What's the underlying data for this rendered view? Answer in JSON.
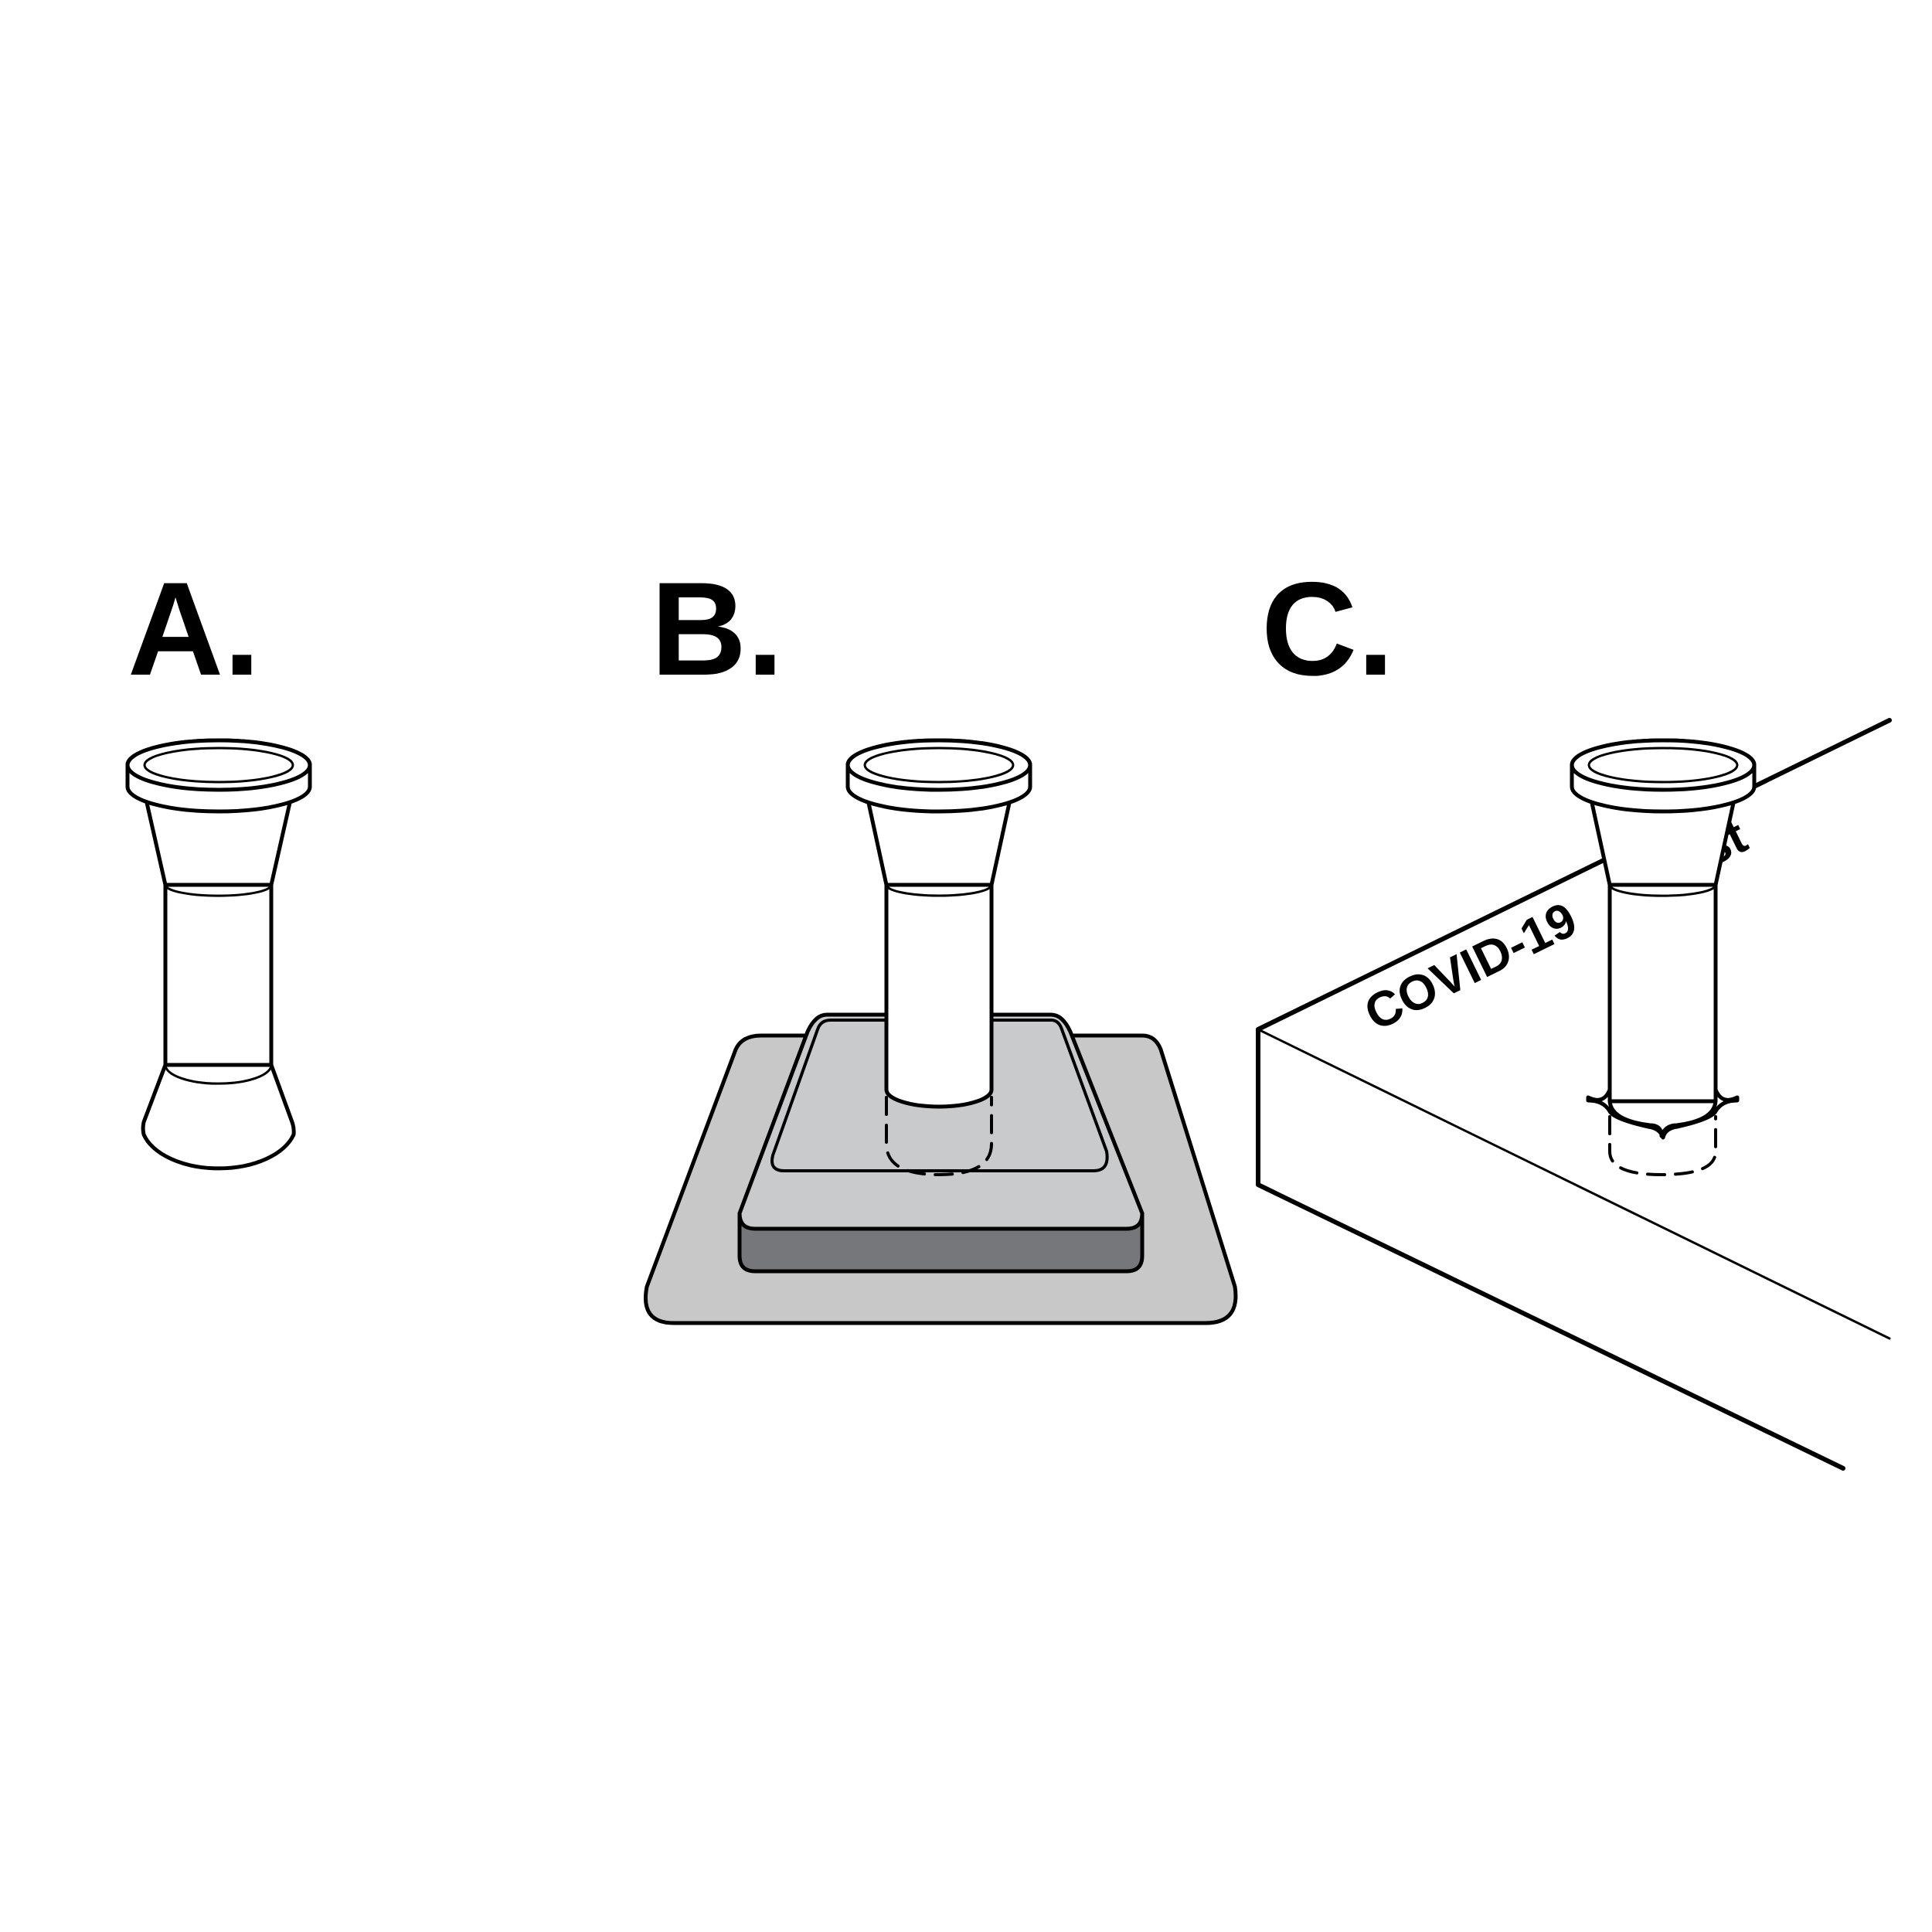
{
  "panels": [
    {
      "id": "A",
      "label": "A."
    },
    {
      "id": "B",
      "label": "B."
    },
    {
      "id": "C",
      "label": "C."
    }
  ],
  "box": {
    "text_left": "COVID-19",
    "text_right": "e Test"
  },
  "colors": {
    "outline": "#000000",
    "background": "#ffffff",
    "stand_light": "#c8c8c8",
    "stand_top": "#c9cacc",
    "stand_dark": "#76777b"
  }
}
